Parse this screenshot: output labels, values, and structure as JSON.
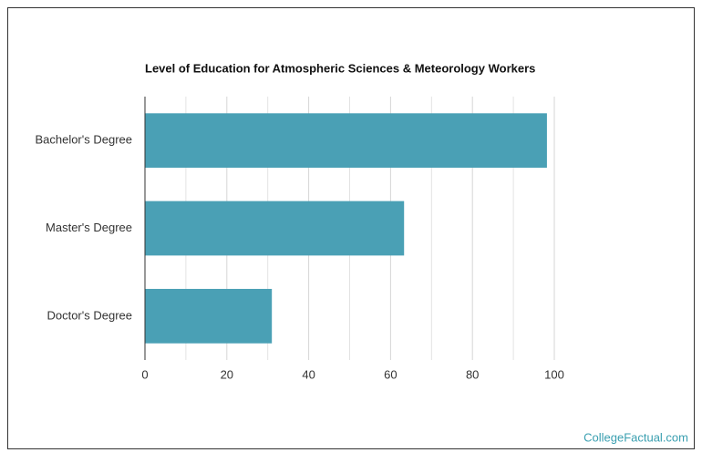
{
  "chart_data": {
    "type": "bar",
    "orientation": "horizontal",
    "title": "Level of Education for Atmospheric Sciences & Meteorology Workers",
    "categories": [
      "Bachelor's Degree",
      "Master's Degree",
      "Doctor's Degree"
    ],
    "values": [
      98.2,
      63.3,
      31
    ],
    "color": "#4aa0b5",
    "xlim": [
      0,
      100
    ],
    "xticks": [
      0,
      20,
      40,
      60,
      80,
      100
    ],
    "minor_xticks": [
      10,
      30,
      50,
      70,
      90
    ],
    "grid": true,
    "watermark": "CollegeFactual.com"
  }
}
